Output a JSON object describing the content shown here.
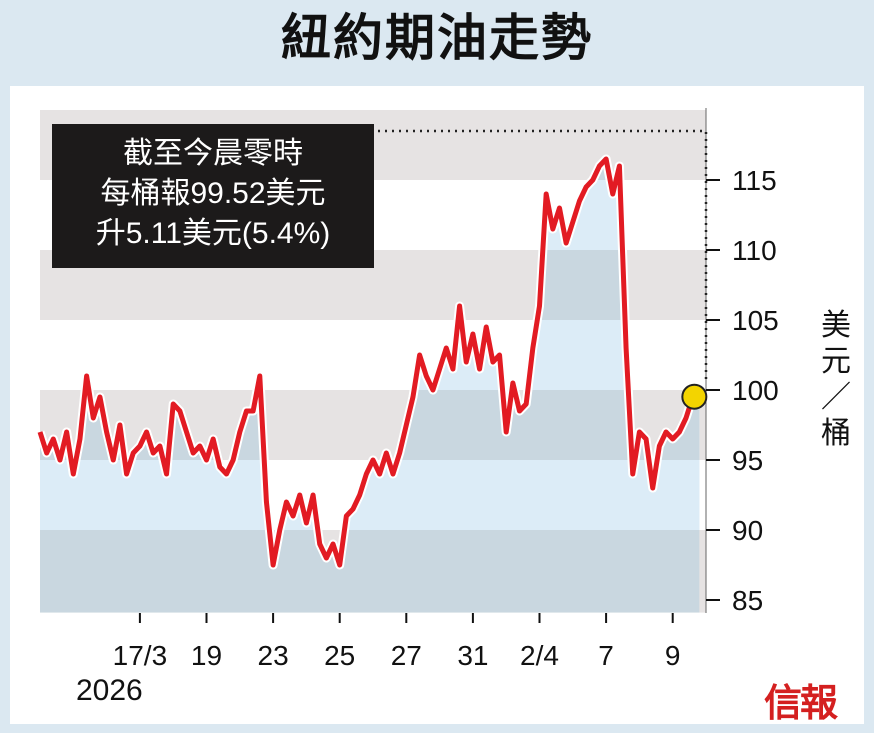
{
  "title": "紐約期油走勢",
  "info_box": {
    "line1": "截至今晨零時",
    "line2": "每桶報99.52美元",
    "line3": "升5.11美元(5.4%)"
  },
  "unit_label": "美元／桶",
  "brand": "信報",
  "year_label": "2026",
  "colors": {
    "line": "#e21b23",
    "marker": "#f3d400",
    "band_dark": "#e6e3e3",
    "area_light": "#dcecf7",
    "area_dark": "#c9d7e0"
  },
  "chart_data": {
    "type": "line",
    "title": "紐約期油走勢",
    "ylabel": "美元／桶",
    "ylim": [
      84,
      120
    ],
    "yticks": [
      85,
      90,
      95,
      100,
      105,
      110,
      115
    ],
    "x_ticks": [
      "17/3",
      "19",
      "23",
      "25",
      "27",
      "31",
      "2/4",
      "7",
      "9"
    ],
    "x_tick_pos": [
      3.0,
      5.0,
      7.0,
      9.0,
      11.0,
      13.0,
      15.0,
      17.0,
      19.0
    ],
    "xlim": [
      0,
      20
    ],
    "last_value": 99.52,
    "series": [
      {
        "x": [
          0.0,
          0.2,
          0.4,
          0.6,
          0.8,
          1.0,
          1.2,
          1.4,
          1.6,
          1.8,
          2.0,
          2.2,
          2.4,
          2.6,
          2.8,
          3.0,
          3.2,
          3.4,
          3.6,
          3.8,
          4.0,
          4.2,
          4.4,
          4.6,
          4.8,
          5.0,
          5.2,
          5.4,
          5.6,
          5.8,
          6.0,
          6.2,
          6.4,
          6.6,
          6.8,
          7.0,
          7.2,
          7.4,
          7.6,
          7.8,
          8.0,
          8.2,
          8.4,
          8.6,
          8.8,
          9.0,
          9.2,
          9.4,
          9.6,
          9.8,
          10.0,
          10.2,
          10.4,
          10.6,
          10.8,
          11.0,
          11.2,
          11.4,
          11.6,
          11.8,
          12.0,
          12.2,
          12.4,
          12.6,
          12.8,
          13.0,
          13.2,
          13.4,
          13.6,
          13.8,
          14.0,
          14.2,
          14.4,
          14.6,
          14.8,
          15.0,
          15.2,
          15.4,
          15.6,
          15.8,
          16.0,
          16.2,
          16.4,
          16.6,
          16.8,
          17.0,
          17.2,
          17.4,
          17.6,
          17.8,
          18.0,
          18.2,
          18.4,
          18.6,
          18.8,
          19.0,
          19.2,
          19.4,
          19.6,
          19.8
        ],
        "y": [
          97,
          95.5,
          96.5,
          95,
          97,
          94,
          96.5,
          101,
          98,
          99.5,
          97,
          95,
          97.5,
          94,
          95.5,
          96,
          97,
          95.5,
          96,
          94,
          99,
          98.5,
          97,
          95.5,
          96,
          95,
          96.5,
          94.5,
          94,
          95,
          97,
          98.5,
          98.5,
          101,
          92,
          87.5,
          90,
          92,
          91,
          92.5,
          90.5,
          92.5,
          89,
          88,
          89,
          87.5,
          91,
          91.5,
          92.5,
          94,
          95,
          94,
          95.5,
          94,
          95.5,
          97.5,
          99.5,
          102.5,
          101,
          100,
          101.5,
          103,
          101.5,
          106,
          102,
          104,
          101.5,
          104.5,
          102,
          102.5,
          97,
          100.5,
          98.5,
          99,
          103,
          106,
          114,
          111.5,
          113,
          110.5,
          112,
          113.5,
          114.5,
          115,
          116,
          116.5,
          114,
          116,
          103,
          94,
          97,
          96.5,
          93,
          96,
          97,
          96.5,
          97,
          98,
          99.5,
          99.5
        ]
      }
    ]
  }
}
